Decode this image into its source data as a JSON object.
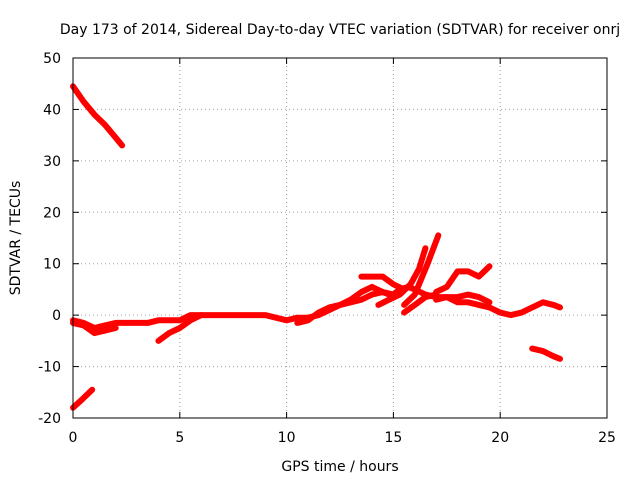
{
  "chart_data": {
    "type": "line",
    "title": "Day 173 of 2014, Sidereal Day-to-day VTEC variation (SDTVAR) for receiver onrj",
    "xlabel": "GPS time / hours",
    "ylabel": "SDTVAR / TECUs",
    "xlim": [
      0,
      25
    ],
    "ylim": [
      -20,
      50
    ],
    "xticks": [
      0,
      5,
      10,
      15,
      20,
      25
    ],
    "yticks": [
      -20,
      -10,
      0,
      10,
      20,
      30,
      40,
      50
    ],
    "grid": true,
    "series": [
      {
        "name": "SDTVAR",
        "color": "#ff0000",
        "segments": [
          [
            [
              0.0,
              44.5
            ],
            [
              0.5,
              41.5
            ],
            [
              1.0,
              39.0
            ],
            [
              1.5,
              37.0
            ],
            [
              2.0,
              34.5
            ],
            [
              2.3,
              33.0
            ]
          ],
          [
            [
              0.0,
              -18.0
            ],
            [
              0.4,
              -16.5
            ],
            [
              0.9,
              -14.5
            ]
          ],
          [
            [
              0.0,
              -1.0
            ],
            [
              0.5,
              -1.5
            ],
            [
              1.0,
              -2.5
            ],
            [
              1.5,
              -2.0
            ],
            [
              2.0,
              -1.5
            ],
            [
              2.5,
              -1.5
            ],
            [
              3.0,
              -1.5
            ],
            [
              3.5,
              -1.5
            ],
            [
              4.0,
              -1.0
            ],
            [
              4.5,
              -1.0
            ],
            [
              5.0,
              -1.0
            ],
            [
              5.5,
              0.0
            ],
            [
              6.0,
              0.0
            ],
            [
              7.0,
              0.0
            ],
            [
              8.0,
              0.0
            ],
            [
              9.0,
              0.0
            ],
            [
              9.5,
              -0.5
            ],
            [
              10.0,
              -1.0
            ],
            [
              10.5,
              -0.5
            ],
            [
              11.0,
              -0.5
            ],
            [
              11.5,
              0.0
            ],
            [
              12.0,
              1.0
            ],
            [
              12.5,
              2.0
            ],
            [
              13.0,
              2.5
            ],
            [
              13.5,
              3.0
            ],
            [
              14.0,
              4.0
            ],
            [
              14.5,
              4.5
            ],
            [
              15.0,
              4.0
            ],
            [
              15.3,
              5.0
            ],
            [
              15.7,
              5.5
            ],
            [
              16.0,
              5.0
            ],
            [
              16.5,
              4.0
            ],
            [
              17.0,
              3.5
            ],
            [
              17.5,
              3.5
            ],
            [
              18.0,
              2.5
            ],
            [
              18.5,
              2.5
            ],
            [
              19.0,
              2.0
            ],
            [
              19.5,
              1.5
            ],
            [
              20.0,
              0.5
            ],
            [
              20.5,
              0.0
            ],
            [
              21.0,
              0.5
            ],
            [
              21.5,
              1.5
            ],
            [
              22.0,
              2.5
            ],
            [
              22.5,
              2.0
            ],
            [
              22.8,
              1.5
            ]
          ],
          [
            [
              0.0,
              -1.5
            ],
            [
              0.5,
              -2.0
            ],
            [
              1.0,
              -3.5
            ],
            [
              1.5,
              -3.0
            ],
            [
              2.0,
              -2.5
            ]
          ],
          [
            [
              4.0,
              -5.0
            ],
            [
              4.5,
              -3.5
            ],
            [
              5.0,
              -2.5
            ],
            [
              5.5,
              -1.0
            ],
            [
              6.0,
              0.0
            ]
          ],
          [
            [
              10.5,
              -1.5
            ],
            [
              11.0,
              -1.0
            ],
            [
              11.5,
              0.5
            ],
            [
              12.0,
              1.5
            ],
            [
              12.5,
              2.0
            ],
            [
              13.0,
              3.0
            ],
            [
              13.5,
              4.5
            ],
            [
              14.0,
              5.5
            ],
            [
              14.5,
              4.5
            ],
            [
              14.8,
              4.0
            ]
          ],
          [
            [
              13.5,
              7.5
            ],
            [
              14.0,
              7.5
            ],
            [
              14.5,
              7.5
            ],
            [
              15.0,
              6.0
            ],
            [
              15.5,
              5.0
            ]
          ],
          [
            [
              14.3,
              2.0
            ],
            [
              14.8,
              3.0
            ],
            [
              15.3,
              4.0
            ],
            [
              15.8,
              6.0
            ],
            [
              16.2,
              9.0
            ],
            [
              16.5,
              13.0
            ]
          ],
          [
            [
              15.5,
              2.0
            ],
            [
              16.0,
              4.0
            ],
            [
              16.3,
              7.0
            ],
            [
              16.6,
              10.0
            ],
            [
              17.1,
              15.5
            ]
          ],
          [
            [
              15.5,
              0.5
            ],
            [
              16.0,
              2.0
            ],
            [
              16.5,
              3.5
            ],
            [
              17.0,
              4.0
            ]
          ],
          [
            [
              17.0,
              4.5
            ],
            [
              17.5,
              5.5
            ],
            [
              18.0,
              8.5
            ],
            [
              18.5,
              8.5
            ],
            [
              19.0,
              7.5
            ],
            [
              19.5,
              9.5
            ]
          ],
          [
            [
              17.0,
              3.0
            ],
            [
              17.5,
              3.5
            ],
            [
              18.0,
              3.5
            ],
            [
              18.5,
              4.0
            ],
            [
              19.0,
              3.5
            ],
            [
              19.5,
              2.5
            ]
          ],
          [
            [
              21.5,
              -6.5
            ],
            [
              22.0,
              -7.0
            ],
            [
              22.5,
              -8.0
            ],
            [
              22.8,
              -8.5
            ]
          ]
        ]
      }
    ]
  }
}
